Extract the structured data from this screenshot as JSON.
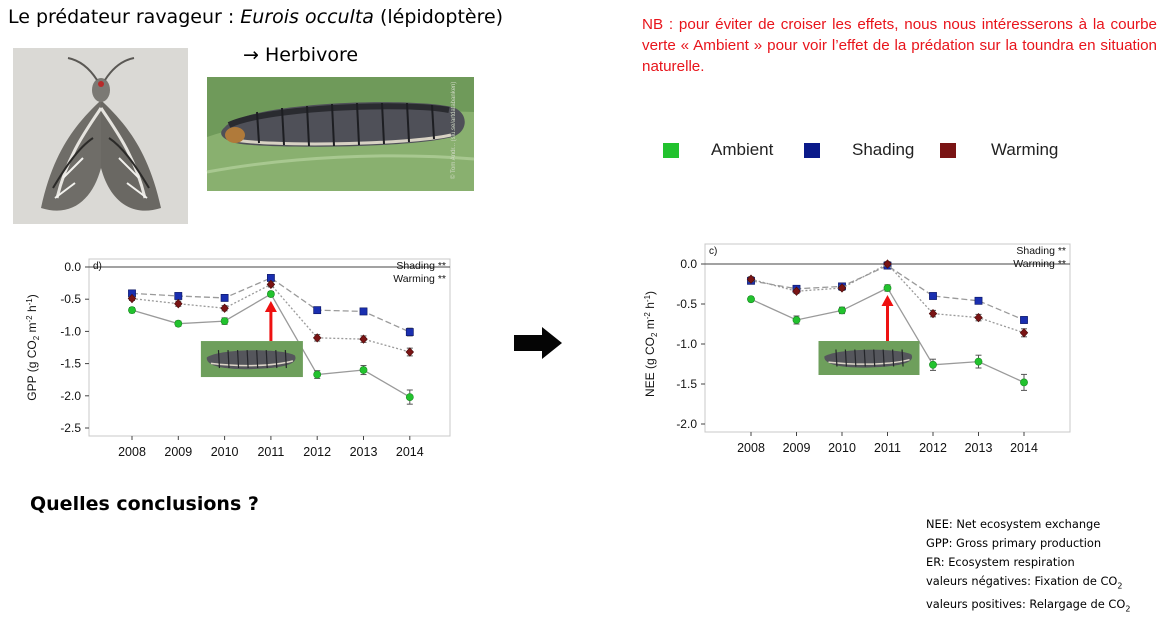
{
  "slide": {
    "title_prefix": "Le prédateur ravageur : ",
    "title_species": "Eurois occulta",
    "title_suffix": " (lépidoptère)",
    "herbivore_label": "→ Herbivore",
    "nb_text": "NB : pour éviter de croiser les effets, nous nous intéresserons à la courbe verte « Ambient » pour voir l’effet de la prédation sur la toundra en situation naturelle.",
    "question": "Quelles conclusions ?",
    "glossary": {
      "nee": "NEE: Net ecosystem exchange",
      "gpp": "GPP: Gross primary production",
      "er": "ER: Ecosystem respiration",
      "negative_prefix": "valeurs négatives: Fixation de CO",
      "negative_sub": "2",
      "positive_prefix": "valeurs positives: Relargage de CO",
      "positive_sub": "2"
    },
    "photo_watermark": "© Tom Andr... (slu.se/artdatabanken)"
  },
  "legend": [
    {
      "name": "Ambient",
      "color": "#22c22e"
    },
    {
      "name": "Shading",
      "color": "#0a1a8a"
    },
    {
      "name": "Warming",
      "color": "#7a1414"
    }
  ],
  "chart_data": [
    {
      "type": "line",
      "panel_label": "d)",
      "ylabel": "GPP (g CO2 m-2 h-1)",
      "ylabel_parts": {
        "pre": "GPP (g CO",
        "sub": "2",
        "mid": " m",
        "sup1": "-2",
        "mid2": " h",
        "sup2": "-1",
        "post": ")"
      },
      "x": [
        2008,
        2009,
        2010,
        2011,
        2012,
        2013,
        2014
      ],
      "ylim": [
        -2.5,
        0.0
      ],
      "yticks": [
        "0.0",
        "-0.5",
        "-1.0",
        "-1.5",
        "-2.0",
        "-2.5"
      ],
      "significance": [
        "Shading **",
        "Warming **"
      ],
      "annotation_year": 2011,
      "series": [
        {
          "name": "Ambient",
          "values": [
            -0.67,
            -0.88,
            -0.84,
            -0.42,
            -1.67,
            -1.6,
            -2.02
          ],
          "err": [
            0.04,
            0.04,
            0.05,
            0.04,
            0.06,
            0.07,
            0.11
          ],
          "color": "#22c22e",
          "marker": "circle",
          "line": "solid",
          "legend_square_color": "#22c22e"
        },
        {
          "name": "Shading",
          "values": [
            -0.41,
            -0.45,
            -0.48,
            -0.17,
            -0.67,
            -0.69,
            -1.01
          ],
          "err": [
            0.03,
            0.03,
            0.03,
            0.03,
            0.03,
            0.03,
            0.06
          ],
          "color": "#1a2fb0",
          "marker": "square",
          "line": "dash"
        },
        {
          "name": "Warming",
          "values": [
            -0.49,
            -0.57,
            -0.64,
            -0.27,
            -1.1,
            -1.12,
            -1.32
          ],
          "err": [
            0.03,
            0.04,
            0.04,
            0.04,
            0.05,
            0.05,
            0.06
          ],
          "color": "#7a1414",
          "marker": "diamond",
          "line": "dot"
        }
      ]
    },
    {
      "type": "line",
      "panel_label": "c)",
      "ylabel": "NEE (g CO2 m-2 h-1)",
      "ylabel_parts": {
        "pre": "NEE (g CO",
        "sub": "2",
        "mid": " m",
        "sup1": "-2",
        "mid2": " h",
        "sup2": "-1",
        "post": ")"
      },
      "x": [
        2008,
        2009,
        2010,
        2011,
        2012,
        2013,
        2014
      ],
      "ylim": [
        -2.0,
        0.0
      ],
      "yticks": [
        "0.0",
        "-0.5",
        "-1.0",
        "-1.5",
        "-2.0"
      ],
      "significance": [
        "Shading **",
        "Warming **"
      ],
      "annotation_year": 2011,
      "series": [
        {
          "name": "Ambient",
          "values": [
            -0.44,
            -0.7,
            -0.58,
            -0.3,
            -1.26,
            -1.22,
            -1.48
          ],
          "err": [
            0.03,
            0.05,
            0.04,
            0.04,
            0.07,
            0.08,
            0.1
          ],
          "color": "#22c22e",
          "marker": "circle",
          "line": "solid"
        },
        {
          "name": "Shading",
          "values": [
            -0.21,
            -0.31,
            -0.28,
            -0.02,
            -0.4,
            -0.46,
            -0.7
          ],
          "err": [
            0.02,
            0.02,
            0.02,
            0.03,
            0.02,
            0.03,
            0.04
          ],
          "color": "#1a2fb0",
          "marker": "square",
          "line": "dash"
        },
        {
          "name": "Warming",
          "values": [
            -0.19,
            -0.34,
            -0.3,
            0.0,
            -0.62,
            -0.67,
            -0.86
          ],
          "err": [
            0.03,
            0.03,
            0.03,
            0.03,
            0.04,
            0.04,
            0.05
          ],
          "color": "#7a1414",
          "marker": "diamond",
          "line": "dot"
        }
      ]
    }
  ]
}
